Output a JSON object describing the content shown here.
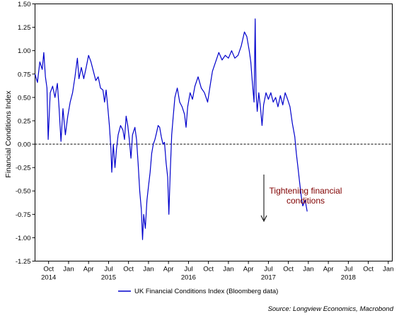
{
  "chart_data": {
    "type": "line",
    "ylabel": "Financial Conditions Index",
    "ylim": [
      -1.25,
      1.5
    ],
    "yticks": [
      "1.50",
      "1.25",
      "1.00",
      "0.75",
      "0.50",
      "0.25",
      "0.00",
      "-0.25",
      "-0.50",
      "-0.75",
      "-1.00",
      "-1.25"
    ],
    "xticks": [
      {
        "m": "Oct",
        "y": "2014",
        "t": 2014.75
      },
      {
        "m": "Jan",
        "y": "",
        "t": 2015.0
      },
      {
        "m": "Apr",
        "y": "",
        "t": 2015.25
      },
      {
        "m": "Jul",
        "y": "2015",
        "t": 2015.5
      },
      {
        "m": "Oct",
        "y": "",
        "t": 2015.75
      },
      {
        "m": "Jan",
        "y": "",
        "t": 2016.0
      },
      {
        "m": "Apr",
        "y": "",
        "t": 2016.25
      },
      {
        "m": "Jul",
        "y": "2016",
        "t": 2016.5
      },
      {
        "m": "Oct",
        "y": "",
        "t": 2016.75
      },
      {
        "m": "Jan",
        "y": "",
        "t": 2017.0
      },
      {
        "m": "Apr",
        "y": "",
        "t": 2017.25
      },
      {
        "m": "Jul",
        "y": "2017",
        "t": 2017.5
      },
      {
        "m": "Oct",
        "y": "",
        "t": 2017.75
      },
      {
        "m": "Jan",
        "y": "",
        "t": 2018.0
      },
      {
        "m": "Apr",
        "y": "",
        "t": 2018.25
      },
      {
        "m": "Jul",
        "y": "2018",
        "t": 2018.5
      },
      {
        "m": "Oct",
        "y": "",
        "t": 2018.75
      },
      {
        "m": "Jan",
        "y": "",
        "t": 2019.0
      }
    ],
    "xlim": [
      2014.58,
      2019.05
    ],
    "zero_line": "dashed",
    "series": [
      {
        "name": "UK Financial Conditions Index (Bloomberg data)",
        "color": "#0000cc",
        "points": [
          [
            2014.58,
            0.75
          ],
          [
            2014.61,
            0.66
          ],
          [
            2014.64,
            0.88
          ],
          [
            2014.67,
            0.8
          ],
          [
            2014.69,
            0.98
          ],
          [
            2014.71,
            0.72
          ],
          [
            2014.73,
            0.6
          ],
          [
            2014.745,
            0.05
          ],
          [
            2014.77,
            0.55
          ],
          [
            2014.8,
            0.62
          ],
          [
            2014.83,
            0.5
          ],
          [
            2014.86,
            0.65
          ],
          [
            2014.88,
            0.4
          ],
          [
            2014.905,
            0.03
          ],
          [
            2014.93,
            0.38
          ],
          [
            2014.96,
            0.1
          ],
          [
            2014.99,
            0.3
          ],
          [
            2015.02,
            0.45
          ],
          [
            2015.05,
            0.55
          ],
          [
            2015.08,
            0.72
          ],
          [
            2015.11,
            0.92
          ],
          [
            2015.13,
            0.7
          ],
          [
            2015.16,
            0.82
          ],
          [
            2015.19,
            0.7
          ],
          [
            2015.22,
            0.82
          ],
          [
            2015.25,
            0.95
          ],
          [
            2015.28,
            0.88
          ],
          [
            2015.31,
            0.78
          ],
          [
            2015.34,
            0.68
          ],
          [
            2015.37,
            0.72
          ],
          [
            2015.4,
            0.6
          ],
          [
            2015.43,
            0.58
          ],
          [
            2015.45,
            0.45
          ],
          [
            2015.47,
            0.58
          ],
          [
            2015.49,
            0.4
          ],
          [
            2015.51,
            0.2
          ],
          [
            2015.53,
            -0.05
          ],
          [
            2015.54,
            -0.3
          ],
          [
            2015.56,
            0.0
          ],
          [
            2015.58,
            -0.25
          ],
          [
            2015.6,
            -0.05
          ],
          [
            2015.62,
            0.1
          ],
          [
            2015.65,
            0.2
          ],
          [
            2015.68,
            0.15
          ],
          [
            2015.7,
            0.05
          ],
          [
            2015.72,
            0.3
          ],
          [
            2015.74,
            0.2
          ],
          [
            2015.76,
            0.05
          ],
          [
            2015.78,
            -0.15
          ],
          [
            2015.8,
            0.1
          ],
          [
            2015.83,
            0.18
          ],
          [
            2015.85,
            0.05
          ],
          [
            2015.87,
            -0.2
          ],
          [
            2015.89,
            -0.5
          ],
          [
            2015.91,
            -0.7
          ],
          [
            2015.925,
            -1.02
          ],
          [
            2015.94,
            -0.75
          ],
          [
            2015.96,
            -0.9
          ],
          [
            2015.98,
            -0.6
          ],
          [
            2016.0,
            -0.45
          ],
          [
            2016.02,
            -0.3
          ],
          [
            2016.04,
            -0.1
          ],
          [
            2016.06,
            0.0
          ],
          [
            2016.08,
            0.05
          ],
          [
            2016.1,
            0.12
          ],
          [
            2016.12,
            0.2
          ],
          [
            2016.14,
            0.18
          ],
          [
            2016.16,
            0.08
          ],
          [
            2016.18,
            0.0
          ],
          [
            2016.2,
            0.02
          ],
          [
            2016.22,
            -0.2
          ],
          [
            2016.24,
            -0.35
          ],
          [
            2016.255,
            -0.75
          ],
          [
            2016.27,
            -0.35
          ],
          [
            2016.29,
            0.1
          ],
          [
            2016.31,
            0.3
          ],
          [
            2016.33,
            0.5
          ],
          [
            2016.36,
            0.6
          ],
          [
            2016.39,
            0.45
          ],
          [
            2016.42,
            0.4
          ],
          [
            2016.45,
            0.32
          ],
          [
            2016.47,
            0.18
          ],
          [
            2016.49,
            0.4
          ],
          [
            2016.52,
            0.55
          ],
          [
            2016.55,
            0.48
          ],
          [
            2016.58,
            0.62
          ],
          [
            2016.62,
            0.72
          ],
          [
            2016.66,
            0.6
          ],
          [
            2016.7,
            0.55
          ],
          [
            2016.74,
            0.45
          ],
          [
            2016.77,
            0.62
          ],
          [
            2016.8,
            0.78
          ],
          [
            2016.84,
            0.88
          ],
          [
            2016.88,
            0.98
          ],
          [
            2016.92,
            0.9
          ],
          [
            2016.96,
            0.95
          ],
          [
            2017.0,
            0.92
          ],
          [
            2017.04,
            1.0
          ],
          [
            2017.08,
            0.92
          ],
          [
            2017.12,
            0.95
          ],
          [
            2017.16,
            1.05
          ],
          [
            2017.2,
            1.2
          ],
          [
            2017.23,
            1.15
          ],
          [
            2017.26,
            1.0
          ],
          [
            2017.28,
            0.88
          ],
          [
            2017.3,
            0.65
          ],
          [
            2017.32,
            0.45
          ],
          [
            2017.335,
            1.34
          ],
          [
            2017.345,
            0.55
          ],
          [
            2017.36,
            0.35
          ],
          [
            2017.38,
            0.55
          ],
          [
            2017.4,
            0.4
          ],
          [
            2017.42,
            0.2
          ],
          [
            2017.44,
            0.42
          ],
          [
            2017.47,
            0.55
          ],
          [
            2017.5,
            0.48
          ],
          [
            2017.53,
            0.55
          ],
          [
            2017.56,
            0.45
          ],
          [
            2017.59,
            0.5
          ],
          [
            2017.62,
            0.4
          ],
          [
            2017.65,
            0.52
          ],
          [
            2017.68,
            0.42
          ],
          [
            2017.71,
            0.55
          ],
          [
            2017.74,
            0.48
          ],
          [
            2017.77,
            0.4
          ],
          [
            2017.8,
            0.22
          ],
          [
            2017.83,
            0.08
          ],
          [
            2017.85,
            -0.1
          ],
          [
            2017.87,
            -0.25
          ],
          [
            2017.89,
            -0.4
          ],
          [
            2017.91,
            -0.55
          ],
          [
            2017.93,
            -0.66
          ],
          [
            2017.96,
            -0.6
          ],
          [
            2017.985,
            -0.72
          ]
        ]
      }
    ],
    "annotation": "Tightening financial\nconditions",
    "annotation_color": "#800000",
    "source": "Source: Longview Economics, Macrobond",
    "legend_position": "bottom-center"
  }
}
